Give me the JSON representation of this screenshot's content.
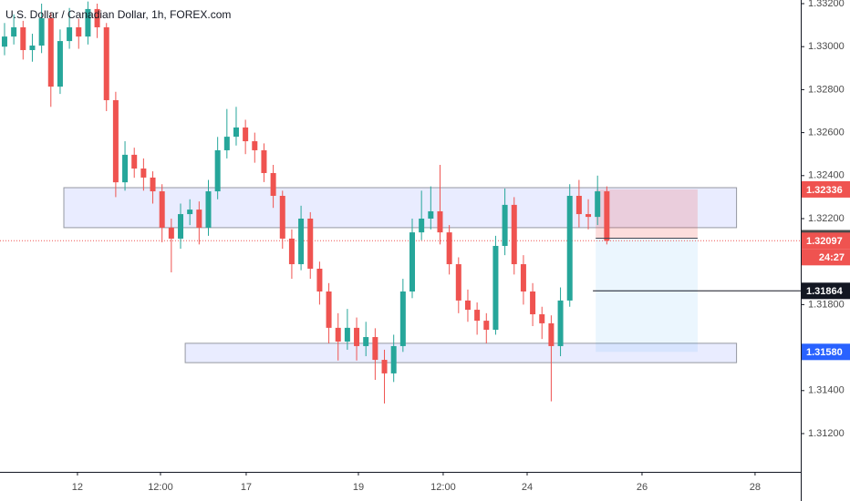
{
  "chart_data": {
    "type": "candlestick",
    "title": "U.S. Dollar / Canadian Dollar, 1h, FOREX.com",
    "up_color": "#26a69a",
    "down_color": "#ef5350",
    "x": [
      0,
      1,
      2,
      3,
      4,
      5,
      6,
      7,
      8,
      9,
      10,
      11,
      12,
      13,
      14,
      15,
      16,
      17,
      18,
      19,
      20,
      21,
      22,
      23,
      24,
      25,
      26,
      27,
      28,
      29,
      30,
      31,
      32,
      33,
      34,
      35,
      36,
      37,
      38,
      39,
      40,
      41,
      42,
      43,
      44,
      45,
      46,
      47,
      48,
      49,
      50,
      51,
      52,
      53,
      54,
      55,
      56,
      57,
      58,
      59,
      60,
      61,
      62,
      63,
      64,
      65
    ],
    "open": [
      1.33,
      1.33047,
      1.3309,
      1.32984,
      1.33005,
      1.33132,
      1.32814,
      1.33026,
      1.3309,
      1.33047,
      1.33175,
      1.3309,
      1.32751,
      1.32369,
      1.32497,
      1.32433,
      1.32391,
      1.32327,
      1.32158,
      1.32107,
      1.32221,
      1.32242,
      1.32158,
      1.32327,
      1.32518,
      1.32581,
      1.32624,
      1.3256,
      1.32518,
      1.32412,
      1.32306,
      1.32107,
      1.31988,
      1.322,
      1.31967,
      1.31861,
      1.31692,
      1.31628,
      1.31692,
      1.31607,
      1.31649,
      1.31543,
      1.3148,
      1.31607,
      1.31861,
      1.32136,
      1.322,
      1.32234,
      1.32136,
      1.31988,
      1.31819,
      1.31776,
      1.31725,
      1.31683,
      1.32073,
      1.32264,
      1.31988,
      1.31861,
      1.31755,
      1.31713,
      1.31607,
      1.31819,
      1.32306,
      1.32221,
      1.32208,
      1.32327
    ],
    "high": [
      1.3311,
      1.3315,
      1.3312,
      1.3306,
      1.332,
      1.3316,
      1.3308,
      1.3318,
      1.3313,
      1.3321,
      1.332,
      1.3311,
      1.3279,
      1.3256,
      1.3253,
      1.3248,
      1.3242,
      1.3236,
      1.322,
      1.3227,
      1.3229,
      1.3228,
      1.3238,
      1.3258,
      1.3271,
      1.3272,
      1.3266,
      1.326,
      1.3255,
      1.3245,
      1.3233,
      1.3215,
      1.3226,
      1.3223,
      1.32,
      1.319,
      1.3176,
      1.3178,
      1.3174,
      1.3172,
      1.3169,
      1.3159,
      1.3166,
      1.3192,
      1.322,
      1.3233,
      1.3235,
      1.3245,
      1.3217,
      1.3202,
      1.3187,
      1.3181,
      1.3176,
      1.3212,
      1.3234,
      1.323,
      1.3203,
      1.319,
      1.3179,
      1.3175,
      1.3188,
      1.3236,
      1.3238,
      1.3229,
      1.324,
      1.3235
    ],
    "low": [
      1.3296,
      1.3301,
      1.3294,
      1.3293,
      1.3297,
      1.3272,
      1.3278,
      1.3299,
      1.3299,
      1.3301,
      1.3304,
      1.327,
      1.323,
      1.3233,
      1.3239,
      1.3233,
      1.3227,
      1.3209,
      1.3195,
      1.3206,
      1.3217,
      1.3208,
      1.3212,
      1.3229,
      1.3248,
      1.3254,
      1.325,
      1.3246,
      1.3237,
      1.3225,
      1.3206,
      1.3192,
      1.3196,
      1.3192,
      1.318,
      1.3162,
      1.3154,
      1.3159,
      1.3154,
      1.3156,
      1.3145,
      1.3134,
      1.3144,
      1.3158,
      1.3183,
      1.321,
      1.3215,
      1.3208,
      1.3194,
      1.3176,
      1.3172,
      1.3166,
      1.3162,
      1.3166,
      1.3203,
      1.3194,
      1.318,
      1.317,
      1.3164,
      1.3135,
      1.3156,
      1.3179,
      1.3216,
      1.3215,
      1.3217,
      1.3208
    ],
    "close": [
      1.33047,
      1.3309,
      1.32984,
      1.33005,
      1.33132,
      1.32814,
      1.33026,
      1.3309,
      1.33047,
      1.33175,
      1.3309,
      1.32751,
      1.32369,
      1.32497,
      1.32433,
      1.32391,
      1.32327,
      1.32158,
      1.32107,
      1.32221,
      1.32242,
      1.32158,
      1.32327,
      1.32518,
      1.32581,
      1.32624,
      1.3256,
      1.32518,
      1.32412,
      1.32306,
      1.32107,
      1.31988,
      1.322,
      1.31967,
      1.31861,
      1.31692,
      1.31628,
      1.31692,
      1.31607,
      1.31649,
      1.31543,
      1.3148,
      1.31607,
      1.31861,
      1.32136,
      1.322,
      1.32234,
      1.32136,
      1.31988,
      1.31819,
      1.31776,
      1.31725,
      1.31683,
      1.32073,
      1.32264,
      1.31988,
      1.31861,
      1.31755,
      1.31713,
      1.31607,
      1.31819,
      1.32306,
      1.32221,
      1.32208,
      1.32327,
      1.32097
    ],
    "xlim": [
      -0.49,
      85.93
    ],
    "xticks": [
      {
        "value": 7.87,
        "label": "12"
      },
      {
        "value": 16.83,
        "label": "12:00"
      },
      {
        "value": 26.08,
        "label": "17"
      },
      {
        "value": 38.19,
        "label": "19"
      },
      {
        "value": 47.34,
        "label": "12:00"
      },
      {
        "value": 56.4,
        "label": "24"
      },
      {
        "value": 68.8,
        "label": "26"
      },
      {
        "value": 81.0,
        "label": "28"
      }
    ],
    "ylim": [
      1.31022,
      1.33217
    ],
    "yticks": [
      {
        "value": 1.332,
        "label": "1.33200"
      },
      {
        "value": 1.33,
        "label": "1.33000"
      },
      {
        "value": 1.328,
        "label": "1.32800"
      },
      {
        "value": 1.326,
        "label": "1.32600"
      },
      {
        "value": 1.324,
        "label": "1.32400"
      },
      {
        "value": 1.322,
        "label": "1.32200"
      },
      {
        "value": 1.318,
        "label": "1.31800"
      },
      {
        "value": 1.314,
        "label": "1.31400"
      },
      {
        "value": 1.312,
        "label": "1.31200"
      }
    ],
    "zones": [
      {
        "top": 1.32344,
        "bottom": 1.32158,
        "x_start": 6.4,
        "x_end": 79.0
      },
      {
        "top": 1.3162,
        "bottom": 1.3153,
        "x_start": 19.5,
        "x_end": 79.0
      }
    ],
    "position": {
      "stop": 1.32336,
      "entry": 1.32109,
      "target": 1.3158,
      "x_start": 63.8,
      "x_end": 74.8
    },
    "horizontal_line": {
      "value": 1.31864,
      "x_start": 63.5
    },
    "current_price": 1.32097,
    "countdown": "24:27",
    "price_labels": [
      {
        "value": 1.32336,
        "color": "#ef5350"
      },
      {
        "value": 1.32109,
        "color": "#4a4a4a"
      },
      {
        "value": 1.32097,
        "color": "#ef5350"
      },
      {
        "value": 1.31864,
        "color": "#131722"
      },
      {
        "value": 1.3158,
        "label": "1.31580",
        "color": "#2962ff"
      }
    ]
  }
}
